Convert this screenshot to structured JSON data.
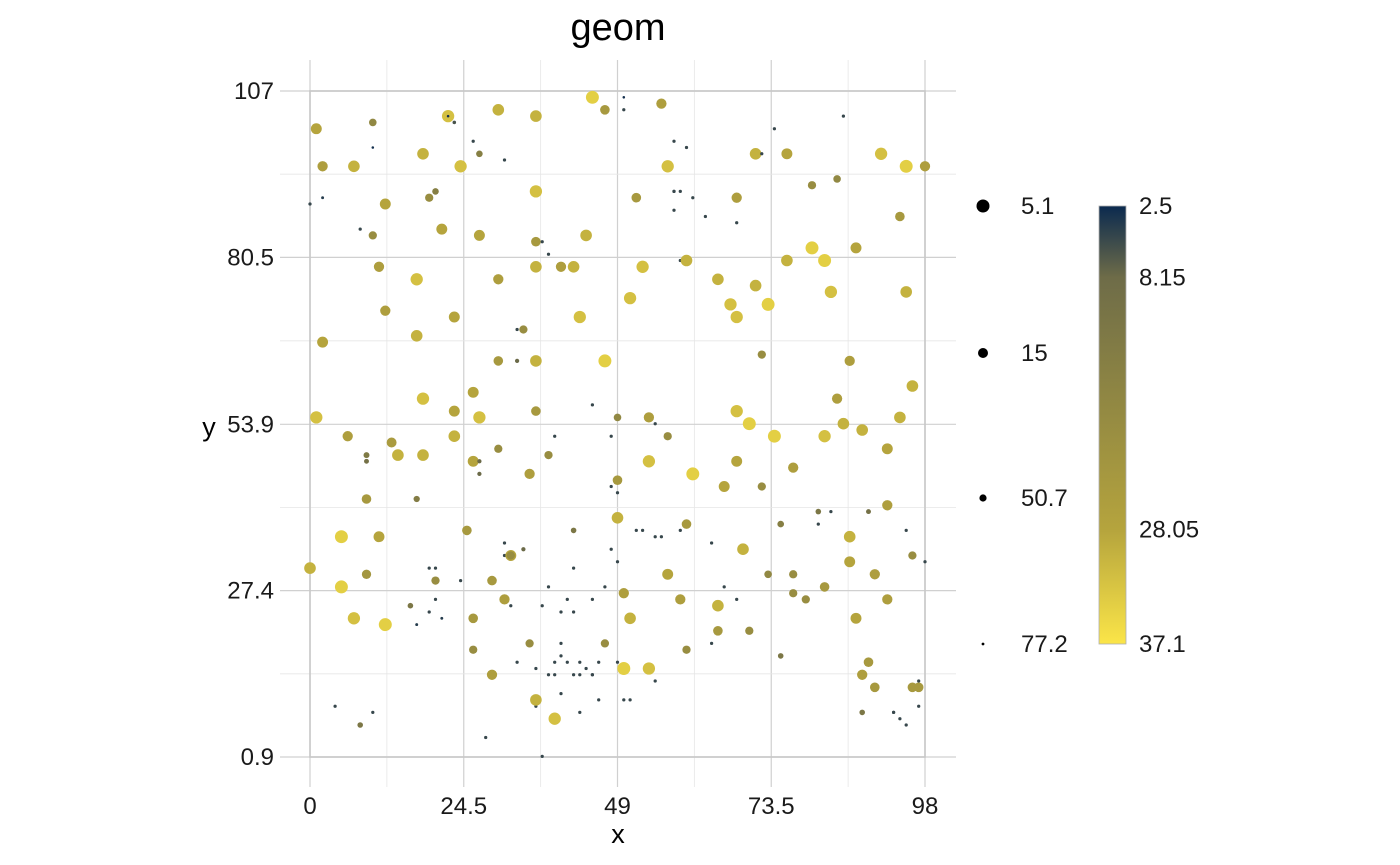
{
  "chart_data": {
    "type": "scatter",
    "title": "geom",
    "xlabel": "x",
    "ylabel": "y",
    "xlim": [
      0,
      98
    ],
    "ylim": [
      0.9,
      107
    ],
    "x_ticks": [
      "0",
      "24.5",
      "49",
      "73.5",
      "98"
    ],
    "x_tick_values": [
      0,
      24.5,
      49,
      73.5,
      98
    ],
    "y_ticks": [
      "0.9",
      "27.4",
      "53.9",
      "80.5",
      "107"
    ],
    "y_tick_values": [
      0.9,
      27.4,
      53.9,
      80.5,
      107
    ],
    "grid": true,
    "size_legend": {
      "labels": [
        "5.1",
        "15",
        "50.7",
        "77.2"
      ],
      "values": [
        5.1,
        15,
        50.7,
        77.2
      ]
    },
    "color_legend": {
      "labels": [
        "2.5",
        "8.15",
        "28.05",
        "37.1"
      ],
      "values": [
        2.5,
        8.15,
        28.05,
        37.1
      ],
      "colors": [
        "#0b2a4f",
        "#6e6c48",
        "#b5a43d",
        "#fbe548"
      ]
    },
    "points": [
      [
        0,
        31,
        30
      ],
      [
        1,
        55,
        32
      ],
      [
        1,
        101,
        28
      ],
      [
        2,
        67,
        28
      ],
      [
        2,
        95,
        26
      ],
      [
        0,
        89,
        5
      ],
      [
        2,
        90,
        4
      ],
      [
        4,
        9,
        5
      ],
      [
        5,
        36,
        34
      ],
      [
        5,
        28,
        34
      ],
      [
        6,
        52,
        26
      ],
      [
        7,
        23,
        32
      ],
      [
        7,
        95,
        30
      ],
      [
        8,
        6,
        12
      ],
      [
        8,
        85,
        5
      ],
      [
        9,
        48,
        10
      ],
      [
        9,
        49,
        13
      ],
      [
        9,
        42,
        24
      ],
      [
        9,
        30,
        23
      ],
      [
        10,
        84,
        20
      ],
      [
        10,
        8,
        5
      ],
      [
        10,
        102,
        18
      ],
      [
        10,
        98,
        3
      ],
      [
        11,
        36,
        28
      ],
      [
        11,
        79,
        26
      ],
      [
        12,
        89,
        28
      ],
      [
        12,
        72,
        26
      ],
      [
        12,
        22,
        34
      ],
      [
        13,
        51,
        25
      ],
      [
        14,
        49,
        30
      ],
      [
        16,
        25,
        12
      ],
      [
        17,
        22,
        4
      ],
      [
        17,
        42,
        14
      ],
      [
        17,
        68,
        30
      ],
      [
        17,
        77,
        32
      ],
      [
        18,
        97,
        30
      ],
      [
        18,
        49,
        30
      ],
      [
        18,
        58,
        32
      ],
      [
        19,
        90,
        20
      ],
      [
        19,
        24,
        5
      ],
      [
        19,
        31,
        5
      ],
      [
        20,
        31,
        5
      ],
      [
        20,
        26,
        5
      ],
      [
        20,
        29,
        20
      ],
      [
        21,
        23,
        4
      ],
      [
        20,
        91,
        15
      ],
      [
        21,
        85,
        28
      ],
      [
        22,
        103,
        32
      ],
      [
        22,
        103,
        3
      ],
      [
        23,
        71,
        28
      ],
      [
        23,
        56,
        28
      ],
      [
        23,
        52,
        30
      ],
      [
        23,
        102,
        6
      ],
      [
        24,
        29,
        5
      ],
      [
        24,
        95,
        32
      ],
      [
        25,
        37,
        24
      ],
      [
        26,
        23,
        24
      ],
      [
        26,
        48,
        28
      ],
      [
        26,
        59,
        28
      ],
      [
        26,
        18,
        20
      ],
      [
        26,
        99,
        5
      ],
      [
        27,
        97,
        15
      ],
      [
        27,
        46,
        8
      ],
      [
        27,
        55,
        32
      ],
      [
        27,
        84,
        28
      ],
      [
        27,
        48,
        8
      ],
      [
        28,
        4,
        5
      ],
      [
        29,
        14,
        26
      ],
      [
        29,
        29,
        24
      ],
      [
        30,
        64,
        24
      ],
      [
        30,
        50,
        20
      ],
      [
        30,
        77,
        26
      ],
      [
        30,
        104,
        30
      ],
      [
        31,
        26,
        26
      ],
      [
        31,
        35,
        5
      ],
      [
        31,
        96,
        5
      ],
      [
        31,
        33,
        5
      ],
      [
        32,
        25,
        5
      ],
      [
        33,
        16,
        5
      ],
      [
        32,
        33,
        28
      ],
      [
        32,
        33,
        20
      ],
      [
        33,
        69,
        5
      ],
      [
        33,
        64,
        8
      ],
      [
        34,
        34,
        8
      ],
      [
        34,
        69,
        20
      ],
      [
        35,
        46,
        26
      ],
      [
        35,
        19,
        20
      ],
      [
        36,
        9,
        5
      ],
      [
        36,
        15,
        5
      ],
      [
        36,
        56,
        24
      ],
      [
        36,
        103,
        30
      ],
      [
        36,
        64,
        30
      ],
      [
        36,
        91,
        32
      ],
      [
        36,
        83,
        24
      ],
      [
        36,
        79,
        30
      ],
      [
        36,
        10,
        30
      ],
      [
        37,
        1,
        5
      ],
      [
        37,
        25,
        5
      ],
      [
        37,
        83,
        5
      ],
      [
        38,
        81,
        5
      ],
      [
        38,
        14,
        5
      ],
      [
        38,
        28,
        5
      ],
      [
        38,
        49,
        20
      ],
      [
        39,
        52,
        5
      ],
      [
        39,
        7,
        32
      ],
      [
        39,
        16,
        5
      ],
      [
        39,
        14,
        5
      ],
      [
        40,
        19,
        5
      ],
      [
        40,
        79,
        26
      ],
      [
        40,
        17,
        5
      ],
      [
        40,
        11,
        5
      ],
      [
        40,
        24,
        5
      ],
      [
        41,
        26,
        5
      ],
      [
        41,
        16,
        5
      ],
      [
        42,
        37,
        12
      ],
      [
        42,
        31,
        5
      ],
      [
        42,
        14,
        5
      ],
      [
        42,
        24,
        5
      ],
      [
        42,
        79,
        30
      ],
      [
        43,
        71,
        32
      ],
      [
        43,
        16,
        5
      ],
      [
        43,
        14,
        5
      ],
      [
        43,
        8,
        5
      ],
      [
        44,
        84,
        30
      ],
      [
        44,
        15,
        5
      ],
      [
        45,
        26,
        5
      ],
      [
        45,
        106,
        34
      ],
      [
        45,
        57,
        5
      ],
      [
        45,
        14,
        5
      ],
      [
        45,
        14,
        5
      ],
      [
        46,
        16,
        5
      ],
      [
        46,
        10,
        5
      ],
      [
        47,
        64,
        34
      ],
      [
        47,
        28,
        5
      ],
      [
        47,
        19,
        20
      ],
      [
        47,
        104,
        24
      ],
      [
        48,
        52,
        5
      ],
      [
        48,
        44,
        5
      ],
      [
        48,
        34,
        5
      ],
      [
        49,
        32,
        5
      ],
      [
        49,
        16,
        5
      ],
      [
        49,
        43,
        5
      ],
      [
        49,
        45,
        24
      ],
      [
        49,
        39,
        30
      ],
      [
        49,
        55,
        18
      ],
      [
        50,
        10,
        5
      ],
      [
        50,
        27,
        26
      ],
      [
        50,
        15,
        34
      ],
      [
        50,
        106,
        3
      ],
      [
        50,
        104,
        5
      ],
      [
        51,
        23,
        30
      ],
      [
        51,
        10,
        5
      ],
      [
        51,
        74,
        32
      ],
      [
        52,
        37,
        5
      ],
      [
        52,
        90,
        24
      ],
      [
        53,
        79,
        32
      ],
      [
        53,
        37,
        5
      ],
      [
        54,
        48,
        32
      ],
      [
        54,
        55,
        26
      ],
      [
        54,
        15,
        32
      ],
      [
        55,
        13,
        5
      ],
      [
        55,
        36,
        5
      ],
      [
        55,
        54,
        5
      ],
      [
        56,
        36,
        5
      ],
      [
        56,
        105,
        26
      ],
      [
        57,
        52,
        20
      ],
      [
        57,
        30,
        28
      ],
      [
        57,
        95,
        32
      ],
      [
        58,
        99,
        5
      ],
      [
        58,
        91,
        5
      ],
      [
        58,
        88,
        5
      ],
      [
        58,
        91,
        5
      ],
      [
        59,
        26,
        26
      ],
      [
        59,
        91,
        5
      ],
      [
        59,
        37,
        5
      ],
      [
        59,
        80,
        5
      ],
      [
        60,
        98,
        5
      ],
      [
        60,
        80,
        30
      ],
      [
        60,
        18,
        20
      ],
      [
        60,
        38,
        24
      ],
      [
        61,
        46,
        34
      ],
      [
        61,
        90,
        5
      ],
      [
        63,
        87,
        5
      ],
      [
        64,
        19,
        5
      ],
      [
        64,
        35,
        5
      ],
      [
        65,
        25,
        30
      ],
      [
        65,
        77,
        30
      ],
      [
        65,
        21,
        24
      ],
      [
        66,
        44,
        28
      ],
      [
        66,
        28,
        5
      ],
      [
        67,
        73,
        32
      ],
      [
        68,
        56,
        32
      ],
      [
        68,
        71,
        32
      ],
      [
        68,
        48,
        28
      ],
      [
        68,
        90,
        26
      ],
      [
        68,
        86,
        5
      ],
      [
        68,
        26,
        5
      ],
      [
        69,
        34,
        30
      ],
      [
        70,
        54,
        34
      ],
      [
        70,
        21,
        20
      ],
      [
        71,
        76,
        30
      ],
      [
        71,
        97,
        30
      ],
      [
        72,
        44,
        20
      ],
      [
        72,
        65,
        20
      ],
      [
        72,
        97,
        5
      ],
      [
        73,
        73,
        34
      ],
      [
        73,
        30,
        18
      ],
      [
        74,
        52,
        34
      ],
      [
        74,
        101,
        5
      ],
      [
        75,
        17,
        12
      ],
      [
        75,
        38,
        15
      ],
      [
        76,
        80,
        30
      ],
      [
        76,
        97,
        28
      ],
      [
        77,
        47,
        26
      ],
      [
        77,
        30,
        20
      ],
      [
        77,
        27,
        20
      ],
      [
        79,
        26,
        20
      ],
      [
        80,
        82,
        34
      ],
      [
        80,
        92,
        20
      ],
      [
        81,
        38,
        5
      ],
      [
        81,
        40,
        12
      ],
      [
        82,
        52,
        32
      ],
      [
        82,
        28,
        24
      ],
      [
        82,
        80,
        34
      ],
      [
        83,
        40,
        5
      ],
      [
        83,
        75,
        32
      ],
      [
        84,
        58,
        26
      ],
      [
        84,
        93,
        18
      ],
      [
        85,
        54,
        30
      ],
      [
        85,
        103,
        5
      ],
      [
        86,
        64,
        26
      ],
      [
        86,
        36,
        30
      ],
      [
        86,
        32,
        28
      ],
      [
        87,
        82,
        28
      ],
      [
        87,
        23,
        28
      ],
      [
        88,
        53,
        30
      ],
      [
        88,
        14,
        26
      ],
      [
        88,
        8,
        12
      ],
      [
        89,
        40,
        10
      ],
      [
        89,
        16,
        24
      ],
      [
        90,
        12,
        24
      ],
      [
        90,
        30,
        26
      ],
      [
        91,
        97,
        32
      ],
      [
        92,
        50,
        28
      ],
      [
        92,
        41,
        26
      ],
      [
        92,
        26,
        26
      ],
      [
        93,
        8,
        5
      ],
      [
        93,
        8,
        5
      ],
      [
        94,
        7,
        5
      ],
      [
        94,
        55,
        30
      ],
      [
        94,
        87,
        24
      ],
      [
        95,
        6,
        5
      ],
      [
        95,
        37,
        5
      ],
      [
        95,
        95,
        34
      ],
      [
        95,
        75,
        30
      ],
      [
        96,
        60,
        30
      ],
      [
        96,
        33,
        20
      ],
      [
        96,
        12,
        24
      ],
      [
        97,
        12,
        24
      ],
      [
        97,
        9,
        5
      ],
      [
        97,
        13,
        5
      ],
      [
        98,
        95,
        26
      ],
      [
        98,
        32,
        5
      ]
    ]
  }
}
